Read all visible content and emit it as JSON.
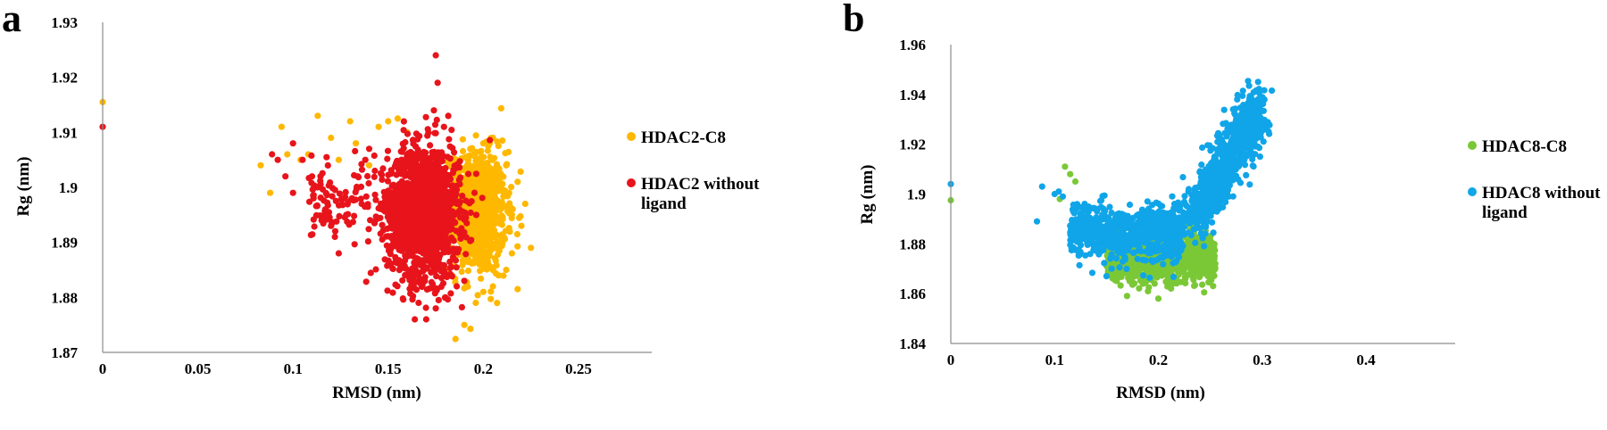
{
  "chart_data": [
    {
      "type": "scatter",
      "panel_label": "a",
      "xlabel": "RMSD (nm)",
      "ylabel": "Rg (nm)",
      "xlim": [
        0,
        0.25
      ],
      "ylim": [
        1.87,
        1.93
      ],
      "x_ticks": [
        "0",
        "0.05",
        "0.1",
        "0.15",
        "0.2",
        "0.25"
      ],
      "y_ticks": [
        "1.87",
        "1.88",
        "1.89",
        "1.9",
        "1.91",
        "1.92",
        "1.93"
      ],
      "grid": false,
      "legend_position": "right",
      "series": [
        {
          "name": "HDAC2-C8",
          "color": "#FFB800",
          "points": [
            [
              0.0,
              1.9155
            ],
            [
              0.083,
              1.904
            ],
            [
              0.088,
              1.899
            ],
            [
              0.094,
              1.911
            ],
            [
              0.097,
              1.906
            ],
            [
              0.104,
              1.905
            ],
            [
              0.108,
              1.906
            ],
            [
              0.113,
              1.913
            ],
            [
              0.12,
              1.909
            ],
            [
              0.124,
              1.905
            ],
            [
              0.13,
              1.912
            ],
            [
              0.133,
              1.908
            ],
            [
              0.14,
              1.904
            ],
            [
              0.145,
              1.911
            ],
            [
              0.15,
              1.912
            ],
            [
              0.155,
              1.9125
            ],
            [
              0.16,
              1.91
            ],
            [
              0.19,
              1.875
            ],
            [
              0.196,
              1.879
            ],
            [
              0.2,
              1.881
            ],
            [
              0.205,
              1.882
            ],
            [
              0.208,
              1.884
            ],
            [
              0.212,
              1.885
            ],
            [
              0.215,
              1.888
            ],
            [
              0.218,
              1.8815
            ],
            [
              0.22,
              1.893
            ],
            [
              0.222,
              1.897
            ],
            [
              0.225,
              1.889
            ],
            [
              0.21,
              1.9085
            ],
            [
              0.205,
              1.909
            ],
            [
              0.2,
              1.908
            ],
            [
              0.195,
              1.906
            ],
            [
              0.212,
              1.904
            ],
            [
              0.218,
              1.901
            ],
            [
              0.198,
              1.886
            ],
            [
              0.215,
              1.895
            ],
            [
              0.19,
              1.887
            ],
            [
              0.206,
              1.9
            ]
          ],
          "cluster": {
            "x_center": 0.197,
            "x_spread": 0.0075,
            "y_center": 1.8955,
            "y_spread": 0.0055,
            "count": 900
          }
        },
        {
          "name": "HDAC2 without\nligand",
          "color": "#E8141B",
          "points": [
            [
              0.0,
              1.911
            ],
            [
              0.089,
              1.906
            ],
            [
              0.092,
              1.905
            ],
            [
              0.096,
              1.902
            ],
            [
              0.1,
              1.899
            ],
            [
              0.1,
              1.908
            ],
            [
              0.105,
              1.905
            ],
            [
              0.11,
              1.902
            ],
            [
              0.113,
              1.9
            ],
            [
              0.115,
              1.894
            ],
            [
              0.117,
              1.896
            ],
            [
              0.12,
              1.893
            ],
            [
              0.122,
              1.891
            ],
            [
              0.124,
              1.888
            ],
            [
              0.128,
              1.895
            ],
            [
              0.131,
              1.898
            ],
            [
              0.134,
              1.902
            ],
            [
              0.138,
              1.905
            ],
            [
              0.14,
              1.907
            ],
            [
              0.143,
              1.903
            ],
            [
              0.175,
              1.924
            ],
            [
              0.176,
              1.919
            ],
            [
              0.174,
              1.914
            ],
            [
              0.164,
              1.876
            ],
            [
              0.17,
              1.876
            ],
            [
              0.166,
              1.879
            ],
            [
              0.175,
              1.878
            ],
            [
              0.18,
              1.88
            ],
            [
              0.19,
              1.883
            ],
            [
              0.186,
              1.882
            ]
          ],
          "cluster": {
            "x_center": 0.169,
            "x_spread": 0.0095,
            "y_center": 1.8955,
            "y_spread": 0.006,
            "count": 1500
          },
          "tail": {
            "x_min": 0.108,
            "x_max": 0.155,
            "y_center": 1.8975,
            "y_spread": 0.0035,
            "count": 110
          }
        }
      ]
    },
    {
      "type": "scatter",
      "panel_label": "b",
      "xlabel": "RMSD (nm)",
      "ylabel": "Rg (nm)",
      "xlim": [
        0,
        0.4
      ],
      "ylim": [
        1.84,
        1.96
      ],
      "x_ticks": [
        "0",
        "0.1",
        "0.2",
        "0.3",
        "0.4"
      ],
      "y_ticks": [
        "1.84",
        "1.86",
        "1.88",
        "1.9",
        "1.92",
        "1.94",
        "1.96"
      ],
      "grid": false,
      "legend_position": "right",
      "series": [
        {
          "name": "HDAC8-C8",
          "color": "#7BC836",
          "points": [
            [
              0.0,
              1.8975
            ],
            [
              0.11,
              1.911
            ],
            [
              0.115,
              1.908
            ],
            [
              0.12,
              1.905
            ],
            [
              0.105,
              1.898
            ],
            [
              0.13,
              1.885
            ],
            [
              0.19,
              1.861
            ],
            [
              0.2,
              1.858
            ],
            [
              0.185,
              1.864
            ],
            [
              0.21,
              1.865
            ],
            [
              0.226,
              1.866
            ],
            [
              0.24,
              1.867
            ],
            [
              0.25,
              1.869
            ]
          ],
          "cluster": {
            "x_min": 0.15,
            "x_max": 0.255,
            "y_center": 1.8745,
            "y_spread": 0.0045,
            "count": 1100
          }
        },
        {
          "name": "HDAC8 without\nligand",
          "color": "#10A5E8",
          "points": [
            [
              0.0,
              1.904
            ],
            [
              0.083,
              1.889
            ],
            [
              0.088,
              1.903
            ],
            [
              0.1,
              1.9
            ],
            [
              0.104,
              1.901
            ],
            [
              0.108,
              1.899
            ],
            [
              0.118,
              1.893
            ],
            [
              0.124,
              1.889
            ],
            [
              0.13,
              1.884
            ],
            [
              0.136,
              1.88
            ],
            [
              0.15,
              1.867
            ],
            [
              0.155,
              1.87
            ],
            [
              0.2,
              1.89
            ],
            [
              0.215,
              1.891
            ],
            [
              0.224,
              1.889
            ],
            [
              0.276,
              1.938
            ],
            [
              0.272,
              1.934
            ],
            [
              0.296,
              1.919
            ],
            [
              0.298,
              1.915
            ],
            [
              0.292,
              1.923
            ],
            [
              0.255,
              1.894
            ],
            [
              0.245,
              1.895
            ]
          ],
          "cluster": {
            "x_min": 0.115,
            "x_max": 0.225,
            "y_center": 1.8845,
            "y_spread": 0.0055,
            "count": 700
          },
          "upper_cluster": {
            "x_min": 0.235,
            "x_max": 0.298,
            "y_min": 1.884,
            "y_max": 1.933,
            "count": 900
          }
        }
      ]
    }
  ]
}
